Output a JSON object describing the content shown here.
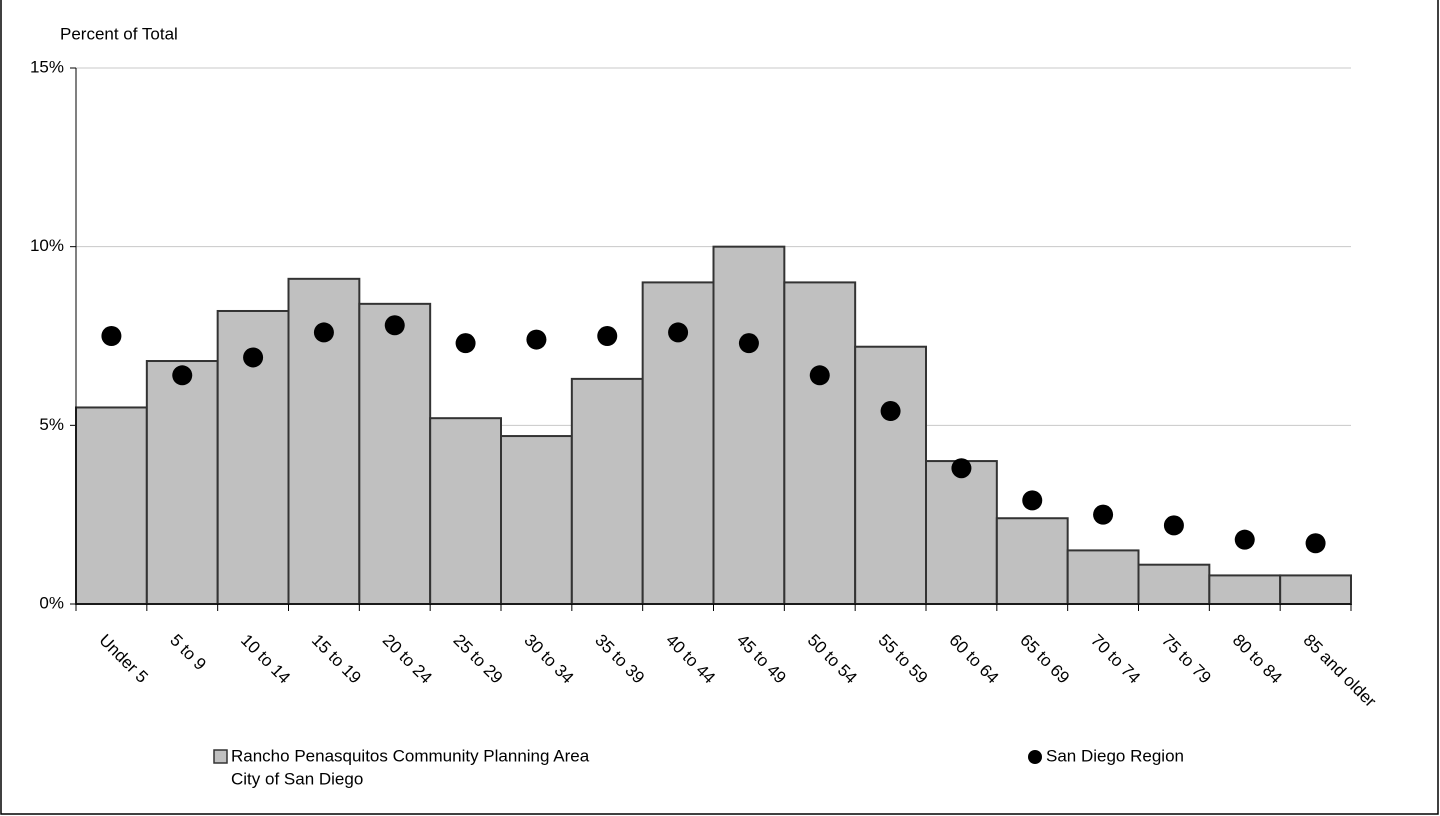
{
  "chart_data": {
    "type": "bar",
    "y_label": "Percent of Total",
    "categories": [
      "Under 5",
      "5 to 9",
      "10 to 14",
      "15 to 19",
      "20 to 24",
      "25 to 29",
      "30 to 34",
      "35 to 39",
      "40 to 44",
      "45 to 49",
      "50 to 54",
      "55 to 59",
      "60 to 64",
      "65 to 69",
      "70 to 74",
      "75 to 79",
      "80 to 84",
      "85 and older"
    ],
    "series": [
      {
        "name": "Rancho Penasquitos Community Planning Area",
        "type": "bar",
        "color": "#c0c0c0",
        "values": [
          5.5,
          6.8,
          8.2,
          9.1,
          8.4,
          5.2,
          4.7,
          6.3,
          9.0,
          10.0,
          9.0,
          7.2,
          4.0,
          2.4,
          1.5,
          1.1,
          0.8,
          0.8
        ]
      },
      {
        "name": "San Diego Region",
        "type": "scatter",
        "color": "#000000",
        "values": [
          7.5,
          6.4,
          6.9,
          7.6,
          7.8,
          7.3,
          7.4,
          7.5,
          7.6,
          7.3,
          6.4,
          5.4,
          3.8,
          2.9,
          2.5,
          2.2,
          1.8,
          1.7
        ]
      }
    ],
    "legend_note": "City of San Diego",
    "ylim": [
      0,
      15
    ],
    "yticks": [
      {
        "value": 0,
        "label": "0%"
      },
      {
        "value": 5,
        "label": "5%"
      },
      {
        "value": 10,
        "label": "10%"
      },
      {
        "value": 15,
        "label": "15%"
      }
    ],
    "grid": true
  }
}
